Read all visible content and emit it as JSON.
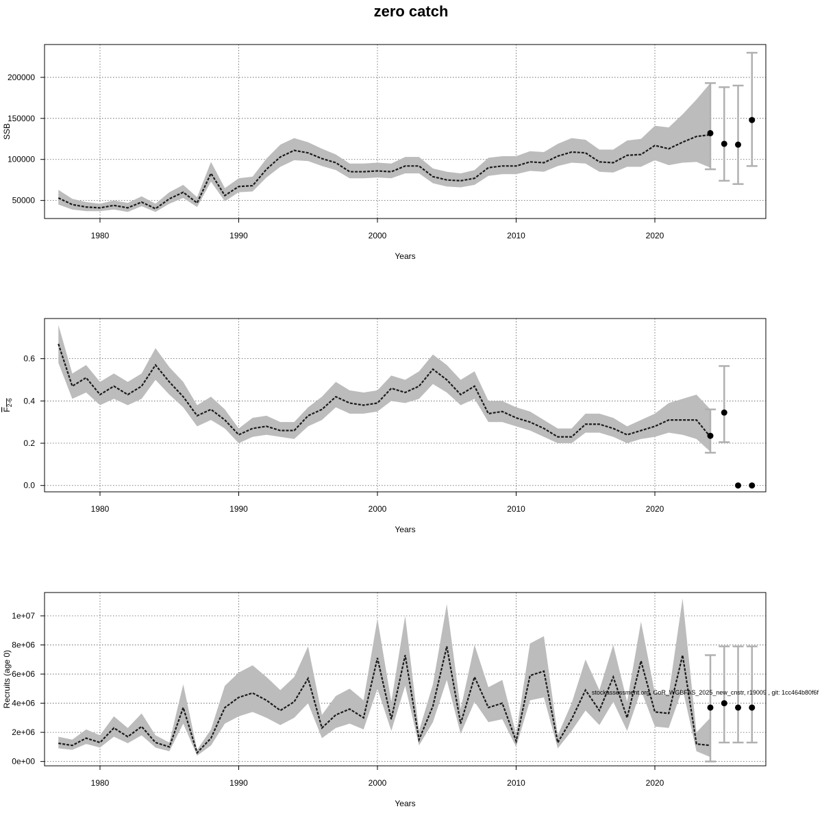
{
  "title": "zero catch",
  "footnote": "stockassessment.org, GoR_WGBFAS_2025_new_cnstr, r19009 , git: 1cc464b80f6f",
  "chart_data": [
    {
      "type": "line",
      "id": "ssb",
      "ylabel": "SSB",
      "xlabel": "Years",
      "xlim": [
        1976,
        2028
      ],
      "ylim": [
        28000,
        240000
      ],
      "xticks": [
        1980,
        1990,
        2000,
        2010,
        2020
      ],
      "xtick_labels": [
        "1980",
        "1990",
        "2000",
        "2010",
        "2020"
      ],
      "yticks": [
        50000,
        100000,
        150000,
        200000
      ],
      "ytick_labels": [
        "50000",
        "100000",
        "150000",
        "200000"
      ],
      "grid": true,
      "series": [
        {
          "x": [
            1977,
            1978,
            1979,
            1980,
            1981,
            1982,
            1983,
            1984,
            1985,
            1986,
            1987,
            1988,
            1989,
            1990,
            1991,
            1992,
            1993,
            1994,
            1995,
            1996,
            1997,
            1998,
            1999,
            2000,
            2001,
            2002,
            2003,
            2004,
            2005,
            2006,
            2007,
            2008,
            2009,
            2010,
            2011,
            2012,
            2013,
            2014,
            2015,
            2016,
            2017,
            2018,
            2019,
            2020,
            2021,
            2022,
            2023,
            2024
          ],
          "y": [
            53000,
            45000,
            42000,
            41000,
            44000,
            41000,
            48000,
            40000,
            52000,
            60000,
            47000,
            83000,
            56000,
            67000,
            68000,
            88000,
            103000,
            111000,
            108000,
            101000,
            96000,
            85000,
            85000,
            86000,
            85000,
            92000,
            92000,
            79000,
            75000,
            74000,
            77000,
            90000,
            92000,
            92000,
            97000,
            96000,
            104000,
            109000,
            108000,
            97000,
            96000,
            105000,
            106000,
            117000,
            113000,
            121000,
            128000,
            130000
          ],
          "lower": [
            45000,
            39000,
            37000,
            37000,
            39000,
            36000,
            43000,
            36000,
            46000,
            53000,
            42000,
            73000,
            49000,
            60000,
            61000,
            78000,
            91000,
            99000,
            98000,
            92000,
            87000,
            77000,
            77000,
            78000,
            77000,
            83000,
            83000,
            71000,
            67000,
            66000,
            69000,
            80000,
            82000,
            82000,
            86000,
            85000,
            92000,
            96000,
            95000,
            85000,
            84000,
            91000,
            91000,
            99000,
            93000,
            96000,
            97000,
            90000
          ],
          "upper": [
            63000,
            52000,
            48000,
            46000,
            50000,
            47000,
            55000,
            46000,
            60000,
            69000,
            54000,
            97000,
            65000,
            77000,
            79000,
            101000,
            118000,
            126000,
            121000,
            113000,
            106000,
            95000,
            95000,
            96000,
            95000,
            103000,
            103000,
            89000,
            85000,
            83000,
            87000,
            102000,
            104000,
            104000,
            110000,
            109000,
            119000,
            126000,
            124000,
            112000,
            112000,
            123000,
            125000,
            141000,
            139000,
            155000,
            173000,
            193000
          ]
        }
      ],
      "projections": [
        {
          "x": 2024,
          "y": 132000,
          "lower": 88000,
          "upper": 193000
        },
        {
          "x": 2025,
          "y": 119000,
          "lower": 74000,
          "upper": 188000
        },
        {
          "x": 2026,
          "y": 118000,
          "lower": 70000,
          "upper": 190000
        },
        {
          "x": 2027,
          "y": 148000,
          "lower": 92000,
          "upper": 230000
        }
      ]
    },
    {
      "type": "line",
      "id": "fbar",
      "ylabel": "F",
      "ylabel_sub": "2-6",
      "xlabel": "Years",
      "xlim": [
        1976,
        2028
      ],
      "ylim": [
        -0.03,
        0.79
      ],
      "xticks": [
        1980,
        1990,
        2000,
        2010,
        2020
      ],
      "xtick_labels": [
        "1980",
        "1990",
        "2000",
        "2010",
        "2020"
      ],
      "yticks": [
        0.0,
        0.2,
        0.4,
        0.6
      ],
      "ytick_labels": [
        "0.0",
        "0.2",
        "0.4",
        "0.6"
      ],
      "grid": true,
      "series": [
        {
          "x": [
            1977,
            1978,
            1979,
            1980,
            1981,
            1982,
            1983,
            1984,
            1985,
            1986,
            1987,
            1988,
            1989,
            1990,
            1991,
            1992,
            1993,
            1994,
            1995,
            1996,
            1997,
            1998,
            1999,
            2000,
            2001,
            2002,
            2003,
            2004,
            2005,
            2006,
            2007,
            2008,
            2009,
            2010,
            2011,
            2012,
            2013,
            2014,
            2015,
            2016,
            2017,
            2018,
            2019,
            2020,
            2021,
            2022,
            2023,
            2024
          ],
          "y": [
            0.67,
            0.47,
            0.51,
            0.43,
            0.47,
            0.43,
            0.47,
            0.57,
            0.49,
            0.42,
            0.33,
            0.36,
            0.31,
            0.24,
            0.27,
            0.28,
            0.26,
            0.26,
            0.33,
            0.36,
            0.42,
            0.39,
            0.38,
            0.39,
            0.46,
            0.44,
            0.47,
            0.55,
            0.5,
            0.43,
            0.47,
            0.34,
            0.35,
            0.32,
            0.3,
            0.27,
            0.23,
            0.23,
            0.29,
            0.29,
            0.27,
            0.24,
            0.26,
            0.28,
            0.31,
            0.31,
            0.31,
            0.23
          ],
          "lower": [
            0.58,
            0.41,
            0.44,
            0.38,
            0.41,
            0.38,
            0.41,
            0.5,
            0.43,
            0.37,
            0.28,
            0.31,
            0.27,
            0.2,
            0.23,
            0.24,
            0.23,
            0.22,
            0.28,
            0.31,
            0.37,
            0.34,
            0.34,
            0.35,
            0.4,
            0.39,
            0.41,
            0.48,
            0.44,
            0.38,
            0.41,
            0.3,
            0.3,
            0.28,
            0.26,
            0.23,
            0.2,
            0.2,
            0.25,
            0.25,
            0.23,
            0.2,
            0.22,
            0.23,
            0.25,
            0.24,
            0.22,
            0.16
          ],
          "upper": [
            0.76,
            0.53,
            0.57,
            0.49,
            0.53,
            0.49,
            0.53,
            0.65,
            0.56,
            0.49,
            0.38,
            0.42,
            0.36,
            0.27,
            0.32,
            0.33,
            0.3,
            0.3,
            0.37,
            0.42,
            0.49,
            0.45,
            0.44,
            0.45,
            0.52,
            0.5,
            0.54,
            0.62,
            0.57,
            0.5,
            0.54,
            0.4,
            0.4,
            0.37,
            0.35,
            0.31,
            0.27,
            0.27,
            0.34,
            0.34,
            0.32,
            0.28,
            0.31,
            0.34,
            0.39,
            0.41,
            0.43,
            0.36
          ]
        }
      ],
      "projections": [
        {
          "x": 2024,
          "y": 0.235,
          "lower": 0.155,
          "upper": 0.36
        },
        {
          "x": 2025,
          "y": 0.345,
          "lower": 0.205,
          "upper": 0.565
        },
        {
          "x": 2026,
          "y": 0.0
        },
        {
          "x": 2027,
          "y": 0.0
        }
      ]
    },
    {
      "type": "line",
      "id": "recruits",
      "ylabel": "Recruits (age 0)",
      "xlabel": "Years",
      "xlim": [
        1976,
        2028
      ],
      "ylim": [
        -300000,
        11600000
      ],
      "xticks": [
        1980,
        1990,
        2000,
        2010,
        2020
      ],
      "xtick_labels": [
        "1980",
        "1990",
        "2000",
        "2010",
        "2020"
      ],
      "yticks": [
        0,
        2000000,
        4000000,
        6000000,
        8000000,
        10000000
      ],
      "ytick_labels": [
        "0e+00",
        "2e+06",
        "4e+06",
        "6e+06",
        "8e+06",
        "1e+07"
      ],
      "grid": true,
      "series": [
        {
          "x": [
            1977,
            1978,
            1979,
            1980,
            1981,
            1982,
            1983,
            1984,
            1985,
            1986,
            1987,
            1988,
            1989,
            1990,
            1991,
            1992,
            1993,
            1994,
            1995,
            1996,
            1997,
            1998,
            1999,
            2000,
            2001,
            2002,
            2003,
            2004,
            2005,
            2006,
            2007,
            2008,
            2009,
            2010,
            2011,
            2012,
            2013,
            2014,
            2015,
            2016,
            2017,
            2018,
            2019,
            2020,
            2021,
            2022,
            2023,
            2024
          ],
          "y": [
            1250000,
            1100000,
            1600000,
            1300000,
            2300000,
            1700000,
            2400000,
            1300000,
            1000000,
            3700000,
            600000,
            1600000,
            3700000,
            4400000,
            4700000,
            4200000,
            3500000,
            4100000,
            5700000,
            2300000,
            3200000,
            3600000,
            3000000,
            7100000,
            2900000,
            7300000,
            1500000,
            3800000,
            7900000,
            2600000,
            5800000,
            3700000,
            4000000,
            1400000,
            5900000,
            6200000,
            1300000,
            2900000,
            4900000,
            3500000,
            5800000,
            3000000,
            6900000,
            3400000,
            3300000,
            7300000,
            1200000,
            1100000
          ],
          "lower": [
            900000,
            800000,
            1200000,
            950000,
            1700000,
            1250000,
            1800000,
            950000,
            700000,
            2600000,
            400000,
            1100000,
            2600000,
            3100000,
            3400000,
            3000000,
            2500000,
            3000000,
            4000000,
            1600000,
            2300000,
            2600000,
            2200000,
            5000000,
            2100000,
            5200000,
            1100000,
            2700000,
            5600000,
            1900000,
            4100000,
            2700000,
            2900000,
            1000000,
            4200000,
            4400000,
            900000,
            2100000,
            3500000,
            2500000,
            4100000,
            2100000,
            4900000,
            2400000,
            2300000,
            5000000,
            700000,
            300000
          ],
          "upper": [
            1700000,
            1500000,
            2200000,
            1800000,
            3100000,
            2300000,
            3300000,
            1800000,
            1300000,
            5300000,
            800000,
            2200000,
            5200000,
            6100000,
            6600000,
            5800000,
            4900000,
            5800000,
            7900000,
            3200000,
            4500000,
            5000000,
            4200000,
            9800000,
            4100000,
            10000000,
            2100000,
            5300000,
            10800000,
            3600000,
            8000000,
            5100000,
            5600000,
            1900000,
            8100000,
            8600000,
            1800000,
            4000000,
            7000000,
            4900000,
            8000000,
            4100000,
            9600000,
            4700000,
            4600000,
            11200000,
            2000000,
            3000000
          ]
        }
      ],
      "projections": [
        {
          "x": 2024,
          "y": 3700000,
          "lower": 0,
          "upper": 7300000
        },
        {
          "x": 2025,
          "y": 4000000,
          "lower": 1300000,
          "upper": 7900000
        },
        {
          "x": 2026,
          "y": 3700000,
          "lower": 1300000,
          "upper": 7900000
        },
        {
          "x": 2027,
          "y": 3700000,
          "lower": 1300000,
          "upper": 7900000
        }
      ]
    }
  ]
}
